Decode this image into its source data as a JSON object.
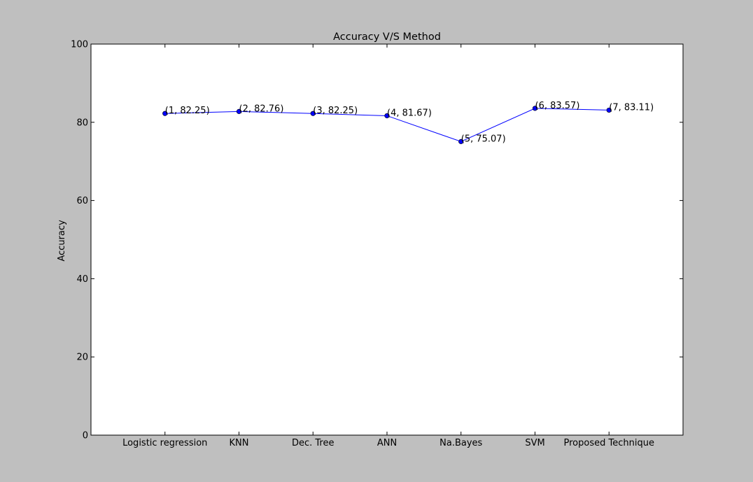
{
  "chart_data": {
    "type": "line",
    "title": "Accuracy V/S Method",
    "xlabel": "",
    "ylabel": "Accuracy",
    "categories": [
      "Logistic regression",
      "KNN",
      "Dec. Tree",
      "ANN",
      "Na.Bayes",
      "SVM",
      "Proposed Technique"
    ],
    "x": [
      1,
      2,
      3,
      4,
      5,
      6,
      7
    ],
    "xlim": [
      0,
      8
    ],
    "ylim": [
      0,
      100
    ],
    "yticks": [
      0,
      20,
      40,
      60,
      80,
      100
    ],
    "grid": false,
    "series": [
      {
        "values": [
          82.25,
          82.76,
          82.25,
          81.67,
          75.07,
          83.57,
          83.11
        ],
        "color": "#0000ff"
      }
    ],
    "annotations": [
      "(1, 82.25)",
      "(2, 82.76)",
      "(3, 82.25)",
      "(4, 81.67)",
      "(5, 75.07)",
      "(6, 83.57)",
      "(7, 83.11)"
    ]
  }
}
